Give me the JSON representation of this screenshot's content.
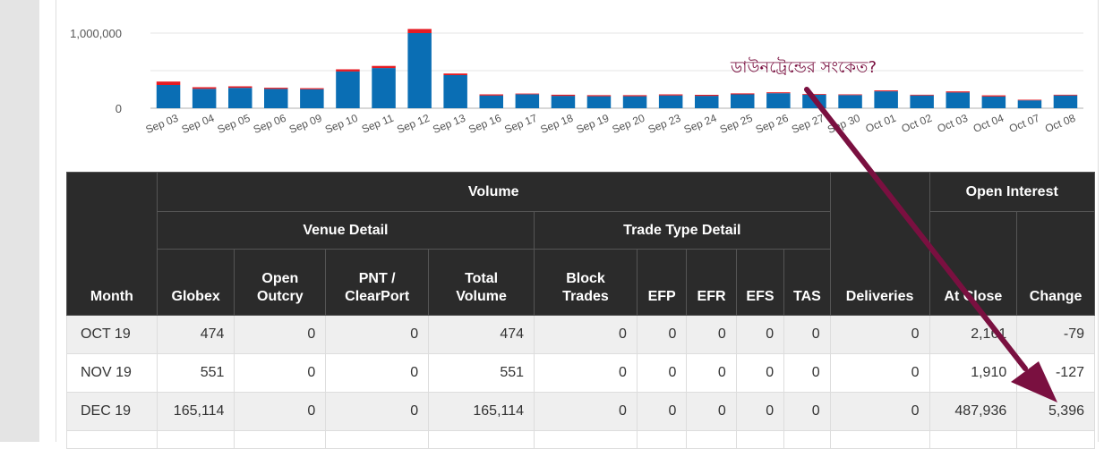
{
  "annotation": {
    "text": "ডাউনট্রেন্ডের সংকেত?",
    "color": "#7a1040"
  },
  "chart_data": {
    "type": "bar",
    "stacked": true,
    "categories": [
      "Sep 03",
      "Sep 04",
      "Sep 05",
      "Sep 06",
      "Sep 09",
      "Sep 10",
      "Sep 11",
      "Sep 12",
      "Sep 13",
      "Sep 16",
      "Sep 17",
      "Sep 18",
      "Sep 19",
      "Sep 20",
      "Sep 23",
      "Sep 24",
      "Sep 25",
      "Sep 26",
      "Sep 27",
      "Sep 30",
      "Oct 01",
      "Oct 02",
      "Oct 03",
      "Oct 04",
      "Oct 07",
      "Oct 08"
    ],
    "series": [
      {
        "color": "#0a6eb4",
        "values": [
          310000,
          258000,
          272000,
          258000,
          253000,
          490000,
          535000,
          1000000,
          440000,
          170000,
          185000,
          165000,
          160000,
          160000,
          170000,
          165000,
          185000,
          200000,
          180000,
          175000,
          225000,
          170000,
          210000,
          155000,
          105000,
          170000
        ]
      },
      {
        "color": "#e41b23",
        "values": [
          45000,
          22000,
          20000,
          15000,
          14000,
          28000,
          28000,
          55000,
          22000,
          15000,
          10000,
          15000,
          14000,
          14000,
          14000,
          14000,
          13000,
          12000,
          10000,
          10000,
          12000,
          10000,
          14000,
          16000,
          8000,
          10000
        ]
      }
    ],
    "yticks": [
      "0",
      "1,000,000"
    ],
    "ylim": [
      0,
      1050000
    ],
    "grid": true,
    "legend": "none"
  },
  "table": {
    "headers": {
      "month": "Month",
      "volume": "Volume",
      "venue_detail": "Venue Detail",
      "trade_type_detail": "Trade Type Detail",
      "deliveries": "Deliveries",
      "open_interest": "Open Interest",
      "globex": "Globex",
      "open_outcry": "Open\nOutcry",
      "pnt_clearport": "PNT /\nClearPort",
      "total_volume": "Total\nVolume",
      "block_trades": "Block\nTrades",
      "efp": "EFP",
      "efr": "EFR",
      "efs": "EFS",
      "tas": "TAS",
      "at_close": "At Close",
      "change": "Change"
    },
    "rows": [
      [
        "OCT 19",
        "474",
        "0",
        "0",
        "474",
        "0",
        "0",
        "0",
        "0",
        "0",
        "0",
        "2,161",
        "-79"
      ],
      [
        "NOV 19",
        "551",
        "0",
        "0",
        "551",
        "0",
        "0",
        "0",
        "0",
        "0",
        "0",
        "1,910",
        "-127"
      ],
      [
        "DEC 19",
        "165,114",
        "0",
        "0",
        "165,114",
        "0",
        "0",
        "0",
        "0",
        "0",
        "0",
        "487,936",
        "5,396"
      ]
    ]
  }
}
